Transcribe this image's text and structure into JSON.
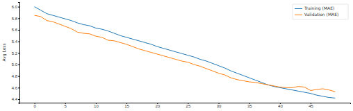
{
  "chart_data": {
    "type": "line",
    "y_label": "Avg Loss",
    "x": [
      0,
      1,
      2,
      3,
      4,
      5,
      6,
      7,
      8,
      9,
      10,
      11,
      12,
      13,
      14,
      15,
      16,
      17,
      18,
      19,
      20,
      21,
      22,
      23,
      24,
      25,
      26,
      27,
      28,
      29,
      30,
      31,
      32,
      33,
      34,
      35,
      36,
      37,
      38,
      39,
      40,
      41,
      42,
      43,
      44,
      45,
      46,
      47,
      48,
      49
    ],
    "series": [
      {
        "name": "Training (MAE)",
        "color": "#1f77b4",
        "values": [
          6.0,
          5.94,
          5.88,
          5.85,
          5.82,
          5.79,
          5.76,
          5.72,
          5.69,
          5.67,
          5.63,
          5.61,
          5.58,
          5.54,
          5.5,
          5.47,
          5.44,
          5.41,
          5.38,
          5.35,
          5.31,
          5.28,
          5.25,
          5.22,
          5.19,
          5.16,
          5.13,
          5.09,
          5.06,
          5.02,
          4.98,
          4.94,
          4.89,
          4.85,
          4.81,
          4.77,
          4.73,
          4.69,
          4.65,
          4.62,
          4.6,
          4.58,
          4.56,
          4.54,
          4.52,
          4.5,
          4.47,
          4.45,
          4.43,
          4.42
        ]
      },
      {
        "name": "Validation (MAE)",
        "color": "#ff7f0e",
        "values": [
          5.85,
          5.83,
          5.76,
          5.74,
          5.7,
          5.66,
          5.62,
          5.56,
          5.54,
          5.53,
          5.49,
          5.47,
          5.42,
          5.41,
          5.38,
          5.35,
          5.31,
          5.27,
          5.24,
          5.21,
          5.18,
          5.15,
          5.12,
          5.09,
          5.06,
          5.04,
          5.0,
          4.97,
          4.93,
          4.89,
          4.85,
          4.82,
          4.77,
          4.74,
          4.72,
          4.7,
          4.69,
          4.67,
          4.65,
          4.63,
          4.61,
          4.6,
          4.6,
          4.62,
          4.61,
          4.55,
          4.57,
          4.58,
          4.56,
          4.53
        ]
      }
    ],
    "xlim": [
      -2.45,
      51.45
    ],
    "xticks": [
      0,
      5,
      10,
      15,
      20,
      25,
      30,
      35,
      40,
      45
    ],
    "ylim": [
      4.34,
      6.08
    ],
    "yticks": [
      {
        "value": 4.4,
        "label": "4.4"
      },
      {
        "value": 4.6,
        "label": "4.6"
      },
      {
        "value": 4.8,
        "label": "4.8"
      },
      {
        "value": 5.0,
        "label": "5.0"
      },
      {
        "value": 5.2,
        "label": "5.2"
      },
      {
        "value": 5.4,
        "label": "5.4"
      },
      {
        "value": 5.6,
        "label": "5.6"
      },
      {
        "value": 5.8,
        "label": "5.8"
      },
      {
        "value": 6.0,
        "label": "6.0"
      }
    ],
    "legend": "upper right",
    "grid": false
  }
}
